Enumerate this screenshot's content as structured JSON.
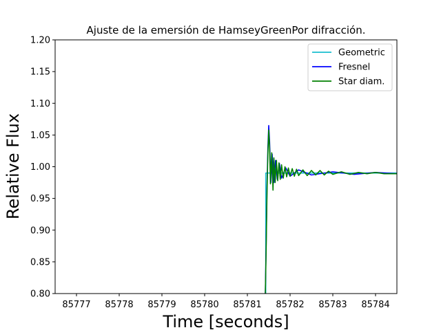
{
  "chart_data": {
    "type": "line",
    "title": "Ajuste de la emersión de HamseyGreenPor difracción.",
    "xlabel": "Time [seconds]",
    "ylabel": "Relative Flux",
    "xlim": [
      85776.5,
      85784.5
    ],
    "ylim": [
      0.8,
      1.2
    ],
    "xticks": [
      85777,
      85778,
      85779,
      85780,
      85781,
      85782,
      85783,
      85784
    ],
    "xtick_labels": [
      "85777",
      "85778",
      "85779",
      "85780",
      "85781",
      "85782",
      "85783",
      "85784"
    ],
    "yticks": [
      0.8,
      0.85,
      0.9,
      0.95,
      1.0,
      1.05,
      1.1,
      1.15,
      1.2
    ],
    "ytick_labels": [
      "0.80",
      "0.85",
      "0.90",
      "0.95",
      "1.00",
      "1.05",
      "1.10",
      "1.15",
      "1.20"
    ],
    "grid": false,
    "legend_position": "top-right",
    "series": [
      {
        "name": "Geometric",
        "color": "#17becf",
        "x": [
          85781.4,
          85781.43,
          85781.43,
          85781.52,
          85784.5
        ],
        "y": [
          0.8,
          0.8,
          0.99,
          0.99,
          0.99
        ]
      },
      {
        "name": "Fresnel",
        "color": "#0000ff",
        "x": [
          85781.42,
          85781.44,
          85781.46,
          85781.48,
          85781.5,
          85781.52,
          85781.55,
          85781.58,
          85781.62,
          85781.66,
          85781.7,
          85781.75,
          85781.8,
          85781.9,
          85782.0,
          85782.2,
          85782.5,
          85783.0,
          85783.5,
          85784.0,
          85784.5
        ],
        "y": [
          0.8,
          0.88,
          0.97,
          1.03,
          1.065,
          1.04,
          0.975,
          1.02,
          0.975,
          1.01,
          0.98,
          1.005,
          0.982,
          0.998,
          0.985,
          0.995,
          0.987,
          0.992,
          0.988,
          0.991,
          0.989
        ]
      },
      {
        "name": "Star diam.",
        "color": "#008000",
        "x": [
          85781.42,
          85781.44,
          85781.46,
          85781.48,
          85781.5,
          85781.52,
          85781.54,
          85781.57,
          85781.6,
          85781.62,
          85781.65,
          85781.68,
          85781.71,
          85781.74,
          85781.77,
          85781.8,
          85781.84,
          85781.88,
          85781.92,
          85781.96,
          85782.0,
          85782.05,
          85782.1,
          85782.15,
          85782.2,
          85782.3,
          85782.4,
          85782.5,
          85782.6,
          85782.7,
          85782.8,
          85782.9,
          85783.0,
          85783.2,
          85783.4,
          85783.6,
          85783.8,
          85784.0,
          85784.2,
          85784.5
        ],
        "y": [
          0.8,
          0.87,
          0.96,
          1.02,
          1.058,
          1.03,
          0.973,
          1.022,
          0.963,
          1.014,
          0.975,
          1.01,
          0.978,
          1.006,
          0.98,
          1.003,
          0.982,
          1.0,
          0.984,
          0.998,
          0.985,
          0.997,
          0.985,
          0.996,
          0.986,
          0.995,
          0.986,
          0.994,
          0.987,
          0.994,
          0.987,
          0.993,
          0.988,
          0.992,
          0.988,
          0.991,
          0.989,
          0.991,
          0.989,
          0.989
        ]
      }
    ]
  }
}
